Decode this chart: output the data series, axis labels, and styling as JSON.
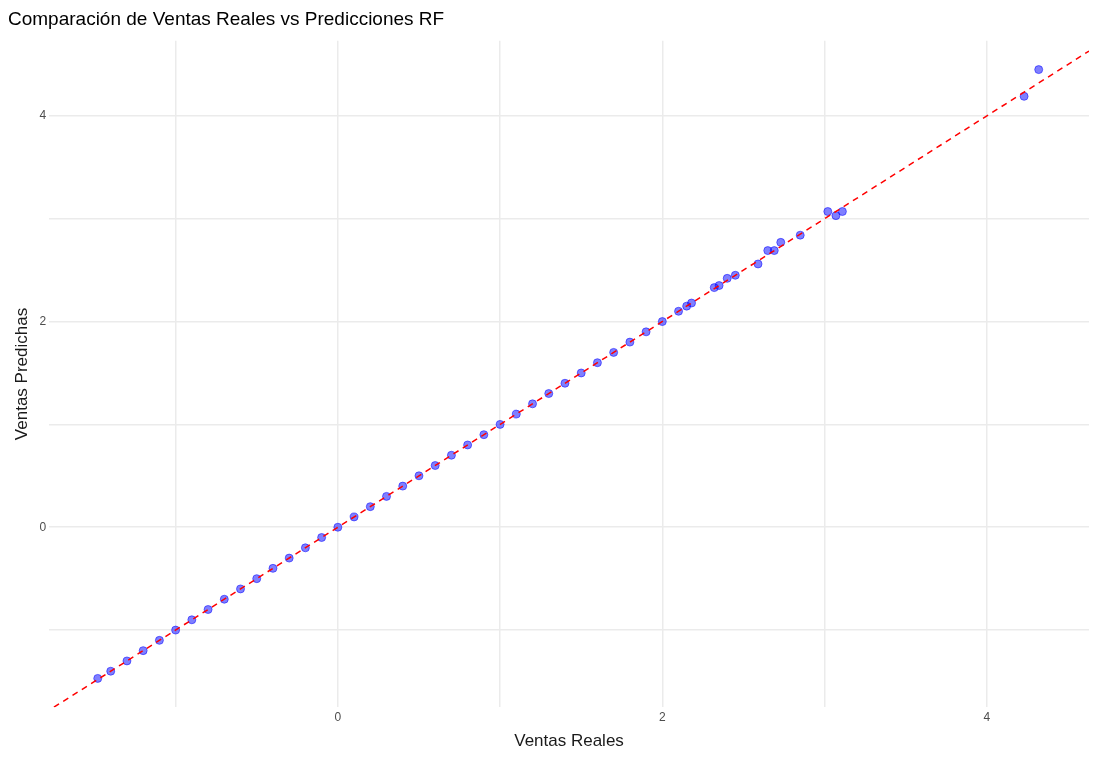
{
  "chart_data": {
    "type": "scatter",
    "title": "Comparación de Ventas Reales vs Predicciones RF",
    "xlabel": "Ventas Reales",
    "ylabel": "Ventas Predichas",
    "xlim": [
      -1.78,
      4.63
    ],
    "ylim": [
      -1.75,
      4.73
    ],
    "xticks": [
      {
        "value": -1,
        "label": null
      },
      0,
      {
        "value": 1,
        "label": null
      },
      2,
      {
        "value": 3,
        "label": null
      },
      4
    ],
    "yticks": [
      {
        "value": -1,
        "label": null
      },
      0,
      {
        "value": 1,
        "label": null
      },
      2,
      {
        "value": 3,
        "label": null
      },
      4
    ],
    "grid": true,
    "legend": false,
    "marker": "circle",
    "series": [
      {
        "type": "scatter",
        "color": "#0000ff",
        "x": [
          -1.48,
          -1.4,
          -1.3,
          -1.2,
          -1.1,
          -1.0,
          -0.9,
          -0.8,
          -0.7,
          -0.6,
          -0.5,
          -0.4,
          -0.3,
          -0.2,
          -0.1,
          0.0,
          0.1,
          0.2,
          0.3,
          0.4,
          0.5,
          0.6,
          0.7,
          0.8,
          0.9,
          1.0,
          1.1,
          1.2,
          1.3,
          1.4,
          1.5,
          1.6,
          1.7,
          1.8,
          1.9,
          2.0,
          2.1,
          2.15,
          2.18,
          2.32,
          2.35,
          2.4,
          2.45,
          2.59,
          2.65,
          2.69,
          2.73,
          2.85,
          3.02,
          3.07,
          3.11,
          4.23,
          4.32
        ],
        "values": [
          -1.47,
          -1.4,
          -1.3,
          -1.2,
          -1.1,
          -1.0,
          -0.9,
          -0.8,
          -0.7,
          -0.6,
          -0.5,
          -0.4,
          -0.3,
          -0.2,
          -0.1,
          0.0,
          0.1,
          0.2,
          0.3,
          0.4,
          0.5,
          0.6,
          0.7,
          0.8,
          0.9,
          1.0,
          1.1,
          1.2,
          1.3,
          1.4,
          1.5,
          1.6,
          1.7,
          1.8,
          1.9,
          2.0,
          2.1,
          2.15,
          2.18,
          2.33,
          2.35,
          2.42,
          2.45,
          2.56,
          2.69,
          2.69,
          2.77,
          2.84,
          3.07,
          3.03,
          3.07,
          4.19,
          4.45
        ]
      },
      {
        "type": "line",
        "color": "#ff0000",
        "line_style": "dashed",
        "marker": "none",
        "x": [
          -1.75,
          4.63
        ],
        "values": [
          -1.75,
          4.63
        ]
      }
    ]
  }
}
